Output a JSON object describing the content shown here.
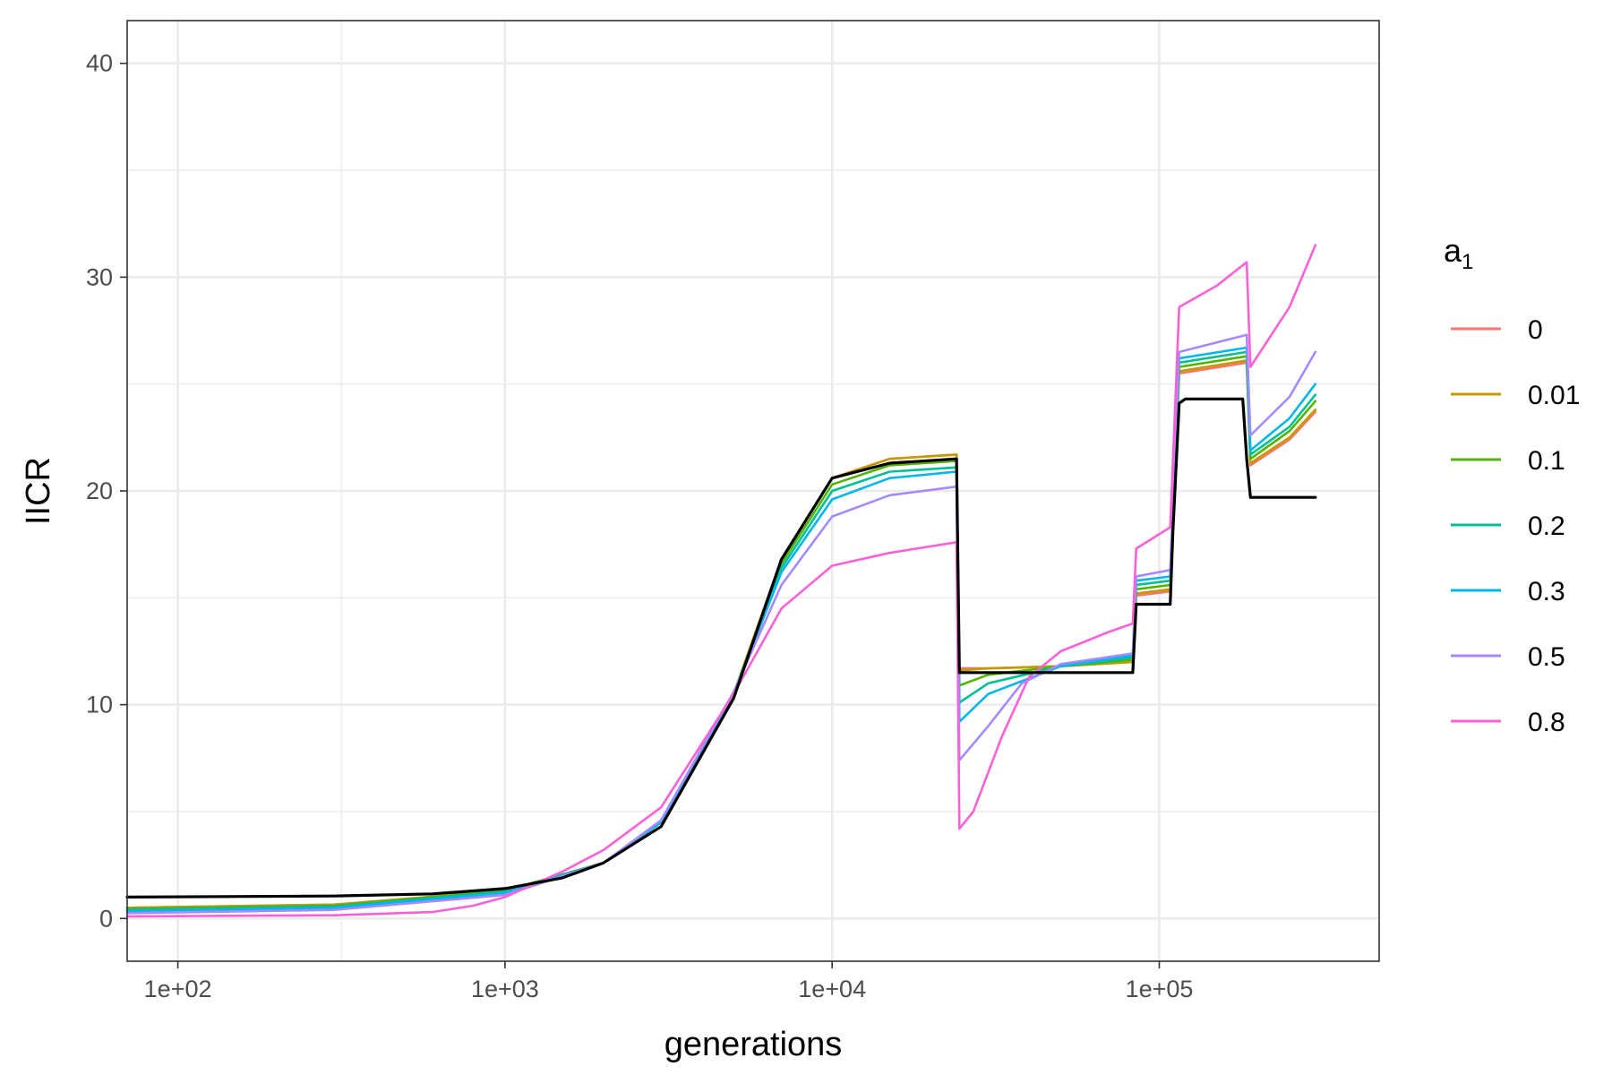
{
  "chart_data": {
    "type": "line",
    "xlabel": "generations",
    "ylabel": "IICR",
    "xscale": "log10",
    "xlim": [
      70,
      470000
    ],
    "ylim": [
      -2,
      42
    ],
    "x_ticks": [
      100,
      1000,
      10000,
      100000
    ],
    "x_tick_labels": [
      "1e+02",
      "1e+03",
      "1e+04",
      "1e+05"
    ],
    "y_ticks": [
      0,
      10,
      20,
      30,
      40
    ],
    "y_tick_labels": [
      "0",
      "10",
      "20",
      "30",
      "40"
    ],
    "grid": true,
    "legend": {
      "title_base": "a",
      "title_sub": "1",
      "placement": "right"
    },
    "series": [
      {
        "name": "0",
        "color": "#F8766D",
        "points": [
          [
            70,
            0.5
          ],
          [
            300,
            0.65
          ],
          [
            1000,
            1.3
          ],
          [
            2000,
            2.6
          ],
          [
            3000,
            4.5
          ],
          [
            5000,
            10.5
          ],
          [
            7000,
            16.8
          ],
          [
            10000,
            20.6
          ],
          [
            15000,
            21.5
          ],
          [
            24000,
            21.7
          ],
          [
            24500,
            11.7
          ],
          [
            30000,
            11.7
          ],
          [
            50000,
            11.8
          ],
          [
            83000,
            12.0
          ],
          [
            85000,
            15.1
          ],
          [
            108000,
            15.3
          ],
          [
            115000,
            25.5
          ],
          [
            185000,
            26.0
          ],
          [
            190000,
            21.2
          ],
          [
            250000,
            22.4
          ],
          [
            300000,
            23.7
          ]
        ]
      },
      {
        "name": "0.01",
        "color": "#C49A00",
        "points": [
          [
            70,
            0.5
          ],
          [
            300,
            0.65
          ],
          [
            1000,
            1.3
          ],
          [
            2000,
            2.6
          ],
          [
            3000,
            4.5
          ],
          [
            5000,
            10.5
          ],
          [
            7000,
            16.8
          ],
          [
            10000,
            20.6
          ],
          [
            15000,
            21.5
          ],
          [
            24000,
            21.7
          ],
          [
            24500,
            11.6
          ],
          [
            30000,
            11.7
          ],
          [
            50000,
            11.8
          ],
          [
            83000,
            12.0
          ],
          [
            85000,
            15.2
          ],
          [
            108000,
            15.4
          ],
          [
            115000,
            25.6
          ],
          [
            185000,
            26.1
          ],
          [
            190000,
            21.3
          ],
          [
            250000,
            22.5
          ],
          [
            300000,
            23.8
          ]
        ]
      },
      {
        "name": "0.1",
        "color": "#53B400",
        "points": [
          [
            70,
            0.45
          ],
          [
            300,
            0.6
          ],
          [
            1000,
            1.3
          ],
          [
            2000,
            2.6
          ],
          [
            3000,
            4.5
          ],
          [
            5000,
            10.5
          ],
          [
            7000,
            16.6
          ],
          [
            10000,
            20.3
          ],
          [
            15000,
            21.2
          ],
          [
            24000,
            21.4
          ],
          [
            24500,
            10.9
          ],
          [
            30000,
            11.4
          ],
          [
            50000,
            11.8
          ],
          [
            83000,
            12.1
          ],
          [
            85000,
            15.4
          ],
          [
            108000,
            15.6
          ],
          [
            115000,
            25.8
          ],
          [
            185000,
            26.3
          ],
          [
            190000,
            21.5
          ],
          [
            250000,
            22.8
          ],
          [
            300000,
            24.2
          ]
        ]
      },
      {
        "name": "0.2",
        "color": "#00C094",
        "points": [
          [
            70,
            0.4
          ],
          [
            300,
            0.55
          ],
          [
            1000,
            1.25
          ],
          [
            2000,
            2.6
          ],
          [
            3000,
            4.5
          ],
          [
            5000,
            10.5
          ],
          [
            7000,
            16.4
          ],
          [
            10000,
            20.0
          ],
          [
            15000,
            20.9
          ],
          [
            24000,
            21.1
          ],
          [
            24500,
            10.1
          ],
          [
            30000,
            11.0
          ],
          [
            50000,
            11.8
          ],
          [
            83000,
            12.2
          ],
          [
            85000,
            15.6
          ],
          [
            108000,
            15.8
          ],
          [
            115000,
            26.0
          ],
          [
            185000,
            26.5
          ],
          [
            190000,
            21.7
          ],
          [
            250000,
            23.0
          ],
          [
            300000,
            24.5
          ]
        ]
      },
      {
        "name": "0.3",
        "color": "#00B6EB",
        "points": [
          [
            70,
            0.35
          ],
          [
            300,
            0.5
          ],
          [
            1000,
            1.2
          ],
          [
            2000,
            2.6
          ],
          [
            3000,
            4.5
          ],
          [
            5000,
            10.5
          ],
          [
            7000,
            16.2
          ],
          [
            10000,
            19.6
          ],
          [
            15000,
            20.6
          ],
          [
            24000,
            20.9
          ],
          [
            24500,
            9.2
          ],
          [
            30000,
            10.5
          ],
          [
            50000,
            11.8
          ],
          [
            83000,
            12.3
          ],
          [
            85000,
            15.8
          ],
          [
            108000,
            16.0
          ],
          [
            115000,
            26.2
          ],
          [
            185000,
            26.7
          ],
          [
            190000,
            21.9
          ],
          [
            250000,
            23.4
          ],
          [
            300000,
            25.0
          ]
        ]
      },
      {
        "name": "0.5",
        "color": "#A58AFF",
        "points": [
          [
            70,
            0.25
          ],
          [
            300,
            0.4
          ],
          [
            1000,
            1.1
          ],
          [
            2000,
            2.6
          ],
          [
            3000,
            4.6
          ],
          [
            5000,
            10.6
          ],
          [
            7000,
            15.6
          ],
          [
            10000,
            18.8
          ],
          [
            15000,
            19.8
          ],
          [
            24000,
            20.2
          ],
          [
            24500,
            7.4
          ],
          [
            30000,
            9.0
          ],
          [
            38000,
            11.0
          ],
          [
            50000,
            11.9
          ],
          [
            83000,
            12.4
          ],
          [
            85000,
            16.0
          ],
          [
            108000,
            16.3
          ],
          [
            115000,
            26.5
          ],
          [
            185000,
            27.3
          ],
          [
            190000,
            22.6
          ],
          [
            250000,
            24.4
          ],
          [
            300000,
            26.5
          ]
        ]
      },
      {
        "name": "0.8",
        "color": "#FB61D7",
        "points": [
          [
            70,
            0.1
          ],
          [
            300,
            0.15
          ],
          [
            600,
            0.3
          ],
          [
            800,
            0.6
          ],
          [
            1000,
            1.0
          ],
          [
            1500,
            2.2
          ],
          [
            2000,
            3.2
          ],
          [
            3000,
            5.2
          ],
          [
            5000,
            10.5
          ],
          [
            7000,
            14.5
          ],
          [
            10000,
            16.5
          ],
          [
            15000,
            17.1
          ],
          [
            24000,
            17.6
          ],
          [
            24500,
            4.2
          ],
          [
            27000,
            5.0
          ],
          [
            33000,
            8.5
          ],
          [
            40000,
            11.3
          ],
          [
            50000,
            12.5
          ],
          [
            70000,
            13.4
          ],
          [
            83000,
            13.8
          ],
          [
            85000,
            17.3
          ],
          [
            108000,
            18.3
          ],
          [
            115000,
            28.6
          ],
          [
            150000,
            29.6
          ],
          [
            185000,
            30.7
          ],
          [
            190000,
            25.8
          ],
          [
            250000,
            28.6
          ],
          [
            300000,
            31.5
          ]
        ]
      },
      {
        "name": "",
        "color": "#000000",
        "points": [
          [
            70,
            1.0
          ],
          [
            300,
            1.05
          ],
          [
            600,
            1.15
          ],
          [
            1000,
            1.4
          ],
          [
            1500,
            1.9
          ],
          [
            2000,
            2.6
          ],
          [
            3000,
            4.3
          ],
          [
            5000,
            10.3
          ],
          [
            7000,
            16.8
          ],
          [
            10000,
            20.6
          ],
          [
            15000,
            21.3
          ],
          [
            24000,
            21.5
          ],
          [
            24500,
            11.5
          ],
          [
            83000,
            11.5
          ],
          [
            85000,
            14.7
          ],
          [
            108000,
            14.7
          ],
          [
            110000,
            18.0
          ],
          [
            115000,
            24.1
          ],
          [
            120000,
            24.3
          ],
          [
            180000,
            24.3
          ],
          [
            185000,
            21.5
          ],
          [
            190000,
            19.7
          ],
          [
            300000,
            19.7
          ]
        ]
      }
    ]
  }
}
